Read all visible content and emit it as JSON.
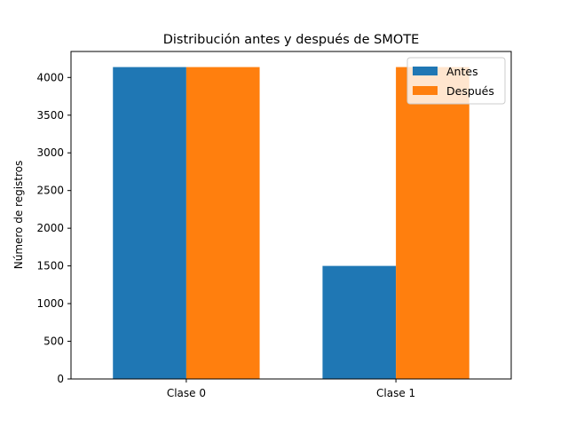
{
  "chart_data": {
    "type": "bar",
    "title": "Distribución antes y después de SMOTE",
    "xlabel": "",
    "ylabel": "Número de registros",
    "categories": [
      "Clase 0",
      "Clase 1"
    ],
    "series": [
      {
        "name": "Antes",
        "values": [
          4138,
          1500
        ],
        "color": "#1f77b4"
      },
      {
        "name": "Después",
        "values": [
          4138,
          4138
        ],
        "color": "#ff7f0e"
      }
    ],
    "ylim": [
      0,
      4345
    ],
    "yticks": [
      0,
      500,
      1000,
      1500,
      2000,
      2500,
      3000,
      3500,
      4000
    ],
    "grid": false,
    "legend_position": "top-right"
  }
}
